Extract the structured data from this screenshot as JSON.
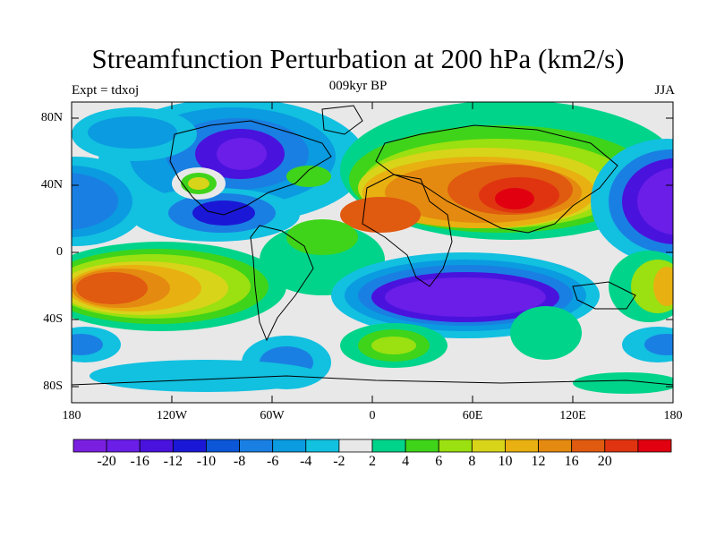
{
  "title": "Streamfunction Perturbation at 200 hPa (km2/s)",
  "left_label": "Expt = tdxoj",
  "center_label": "009kyr BP",
  "right_label": "JJA",
  "map": {
    "y_ticks": [
      "80N",
      "40N",
      "0",
      "40S",
      "80S"
    ],
    "x_ticks": [
      "180",
      "120W",
      "60W",
      "0",
      "60E",
      "120E",
      "180"
    ]
  },
  "colorbar": {
    "colors": [
      "#7a1fe0",
      "#6a1ee8",
      "#4a12dd",
      "#1a18d6",
      "#0c56d8",
      "#1a7fe2",
      "#0a9be0",
      "#12c0e0",
      "#e8e8e8",
      "#00d48a",
      "#3fd41a",
      "#9be010",
      "#d8d41a",
      "#e8b010",
      "#e48a10",
      "#e05a10",
      "#e03410",
      "#e00010"
    ],
    "labels": [
      "-20",
      "-16",
      "-12",
      "-10",
      "-8",
      "-6",
      "-4",
      "-2",
      "2",
      "4",
      "6",
      "8",
      "10",
      "12",
      "16",
      "20"
    ]
  }
}
